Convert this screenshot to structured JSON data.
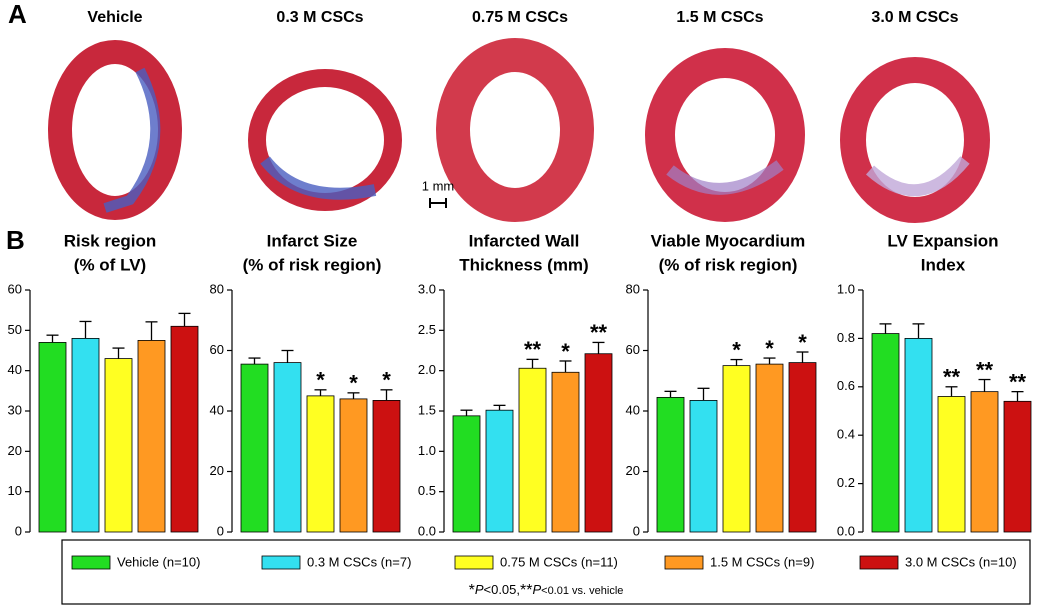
{
  "panels": {
    "a": "A",
    "b": "B"
  },
  "image_labels": [
    "Vehicle",
    "0.3 M CSCs",
    "0.75 M CSCs",
    "1.5 M CSCs",
    "3.0 M CSCs"
  ],
  "scale_bar": "1 mm",
  "groups": [
    {
      "name": "Vehicle (n=10)",
      "color": "#22dd22"
    },
    {
      "name": "0.3 M CSCs (n=7)",
      "color": "#33e0f0"
    },
    {
      "name": "0.75 M CSCs (n=11)",
      "color": "#ffff22"
    },
    {
      "name": "1.5 M CSCs (n=9)",
      "color": "#ff9922"
    },
    {
      "name": "3.0 M CSCs (n=10)",
      "color": "#cc1111"
    }
  ],
  "footnote": [
    "*",
    "P",
    "<0.05,",
    "**",
    "P",
    "<0.01 vs. vehicle"
  ],
  "chart_data": [
    {
      "type": "bar",
      "title": [
        "Risk region",
        "(% of LV)"
      ],
      "values": [
        47,
        48,
        43,
        47.5,
        51
      ],
      "errors": [
        1.8,
        4.2,
        2.6,
        4.6,
        3.2
      ],
      "significance": [
        null,
        null,
        null,
        null,
        null
      ],
      "ylim": [
        0,
        60
      ],
      "yticks": [
        0,
        10,
        20,
        30,
        40,
        50,
        60
      ]
    },
    {
      "type": "bar",
      "title": [
        "Infarct Size",
        "(% of risk region)"
      ],
      "values": [
        55.5,
        56,
        45,
        44,
        43.5
      ],
      "errors": [
        2,
        4,
        2,
        2,
        3.5
      ],
      "significance": [
        null,
        null,
        "*",
        "*",
        "*"
      ],
      "ylim": [
        0,
        80
      ],
      "yticks": [
        0,
        20,
        40,
        60,
        80
      ]
    },
    {
      "type": "bar",
      "title": [
        "Infarcted Wall",
        "Thickness (mm)"
      ],
      "values": [
        1.44,
        1.51,
        2.03,
        1.98,
        2.21
      ],
      "errors": [
        0.07,
        0.06,
        0.11,
        0.14,
        0.14
      ],
      "significance": [
        null,
        null,
        "**",
        "*",
        "**"
      ],
      "ylim": [
        0,
        3
      ],
      "yticks": [
        {
          "value": 0,
          "label": "0.0"
        },
        0.5,
        {
          "value": 1,
          "label": "1.0"
        },
        1.5,
        {
          "value": 2,
          "label": "2.0"
        },
        2.5,
        {
          "value": 3,
          "label": "3.0"
        }
      ]
    },
    {
      "type": "bar",
      "title": [
        "Viable Myocardium",
        "(% of risk region)"
      ],
      "values": [
        44.5,
        43.5,
        55,
        55.5,
        56
      ],
      "errors": [
        2,
        4,
        2,
        2,
        3.5
      ],
      "significance": [
        null,
        null,
        "*",
        "*",
        "*"
      ],
      "ylim": [
        0,
        80
      ],
      "yticks": [
        0,
        20,
        40,
        60,
        80
      ]
    },
    {
      "type": "bar",
      "title": [
        "LV Expansion",
        "Index"
      ],
      "values": [
        0.82,
        0.8,
        0.56,
        0.58,
        0.54
      ],
      "errors": [
        0.04,
        0.06,
        0.04,
        0.05,
        0.04
      ],
      "significance": [
        null,
        null,
        "**",
        "**",
        "**"
      ],
      "ylim": [
        0,
        1
      ],
      "yticks": [
        {
          "value": 0,
          "label": "0.0"
        },
        0.2,
        0.4,
        0.6,
        0.8,
        {
          "value": 1,
          "label": "1.0"
        }
      ]
    }
  ]
}
